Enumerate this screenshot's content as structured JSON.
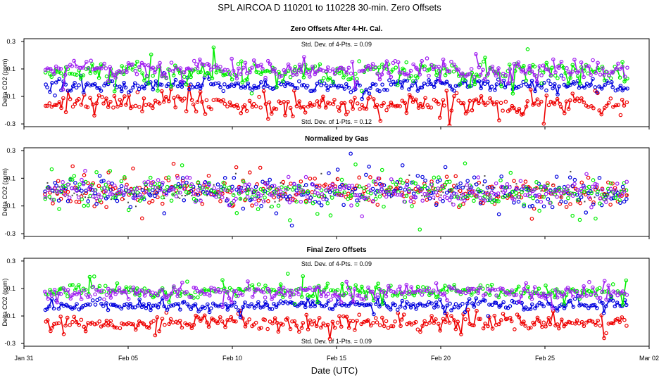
{
  "figure": {
    "title": "SPL   AIRCOA D   110201 to 110228   30-min. Zero Offsets",
    "xlabel": "Date (UTC)",
    "xticks": [
      "Jan 31",
      "Feb 05",
      "Feb 10",
      "Feb 15",
      "Feb 20",
      "Feb 25",
      "Mar 02"
    ],
    "xtick_days": [
      0,
      5,
      10,
      15,
      20,
      25,
      30
    ],
    "xlim_days": [
      0,
      30
    ],
    "data_start_day": 1.0,
    "data_end_day": 29.0
  },
  "colors": {
    "red": "#ee0000",
    "blue": "#0000dd",
    "green": "#00ee00",
    "purple": "#a020f0",
    "gray": "#666666"
  },
  "chart_data": [
    {
      "type": "scatter",
      "title": "Zero Offsets After 4-Hr. Cal.",
      "ylabel": "Delta CO2 (ppm)",
      "ylim": [
        -0.32,
        0.32
      ],
      "yticks": [
        "0.3",
        "0.1",
        "-0.1",
        "-0.3"
      ],
      "ytick_values": [
        0.3,
        0.1,
        -0.1,
        -0.3
      ],
      "annotation_top": "Std. Dev. of 4-Pts. = 0.09",
      "annotation_bottom": "Std. Dev. of 1-Pts. = 0.12",
      "series": [
        {
          "name": "red",
          "mean": -0.16,
          "spread": 0.045
        },
        {
          "name": "blue",
          "mean": -0.02,
          "spread": 0.03
        },
        {
          "name": "green",
          "mean": 0.08,
          "spread": 0.05
        },
        {
          "name": "purple",
          "mean": 0.09,
          "spread": 0.04
        }
      ]
    },
    {
      "type": "scatter",
      "title": "Normalized by Gas",
      "ylabel": "Delta CO2 (ppm)",
      "ylim": [
        -0.32,
        0.32
      ],
      "yticks": [
        "0.3",
        "0.1",
        "-0.1",
        "-0.3"
      ],
      "ytick_values": [
        0.3,
        0.1,
        -0.1,
        -0.3
      ],
      "series": [
        {
          "name": "gray",
          "mean": 0.0,
          "spread": 0.035
        },
        {
          "name": "red",
          "mean": 0.0,
          "spread": 0.06
        },
        {
          "name": "blue",
          "mean": 0.0,
          "spread": 0.07
        },
        {
          "name": "green",
          "mean": 0.0,
          "spread": 0.06
        },
        {
          "name": "purple",
          "mean": 0.0,
          "spread": 0.05
        }
      ]
    },
    {
      "type": "scatter",
      "title": "Final Zero Offsets",
      "ylabel": "Delta CO2 (ppm)",
      "ylim": [
        -0.32,
        0.32
      ],
      "yticks": [
        "0.3",
        "0.1",
        "-0.1",
        "-0.3"
      ],
      "ytick_values": [
        0.3,
        0.1,
        -0.1,
        -0.3
      ],
      "annotation_top": "Std. Dev. of 4-Pts. = 0.09",
      "annotation_bottom": "Std. Dev. of 1-Pts. = 0.09",
      "series": [
        {
          "name": "red",
          "mean": -0.15,
          "spread": 0.035
        },
        {
          "name": "blue",
          "mean": -0.02,
          "spread": 0.025
        },
        {
          "name": "green",
          "mean": 0.08,
          "spread": 0.03
        },
        {
          "name": "purple",
          "mean": 0.07,
          "spread": 0.03
        }
      ]
    }
  ]
}
